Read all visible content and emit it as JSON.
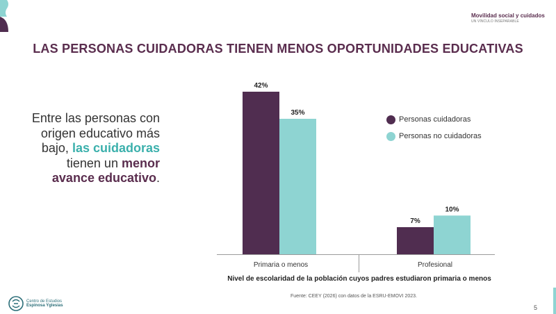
{
  "header": {
    "brand_title": "Movilidad social y cuidados",
    "brand_subtitle": "UN VÍNCULO INSEPARABLE"
  },
  "slide_title": "LAS PERSONAS CUIDADORAS TIENEN MENOS OPORTUNIDADES EDUCATIVAS",
  "lead": {
    "part1": "Entre las personas con origen educativo más bajo,",
    "highlight1": "las cuidadoras",
    "part2": "tienen un",
    "highlight2": "menor avance educativo",
    "end": "."
  },
  "chart_data": {
    "type": "bar",
    "title": "",
    "xlabel": "Nivel de escolaridad de la población cuyos padres estudiaron primaria o menos",
    "ylabel": "",
    "categories": [
      "Primaria o menos",
      "Profesional"
    ],
    "series": [
      {
        "name": "Personas cuidadoras",
        "values": [
          42,
          7
        ],
        "labels": [
          "42%",
          "7%"
        ],
        "color": "#502d50"
      },
      {
        "name": "Personas no cuidadoras",
        "values": [
          35,
          10
        ],
        "labels": [
          "35%",
          "10%"
        ],
        "color": "#8ed4d2"
      }
    ],
    "ylim": [
      0,
      42
    ],
    "grid": false,
    "legend_position": "right"
  },
  "source": "Fuente: CEEY (2026) con datos de la ESRU-EMOVI 2023.",
  "logo": {
    "line1": "Centro de Estudios",
    "line2": "Espinosa Yglesias"
  },
  "page_number": "5",
  "colors": {
    "plum": "#5a2d4e",
    "teal": "#3bb0ac"
  }
}
